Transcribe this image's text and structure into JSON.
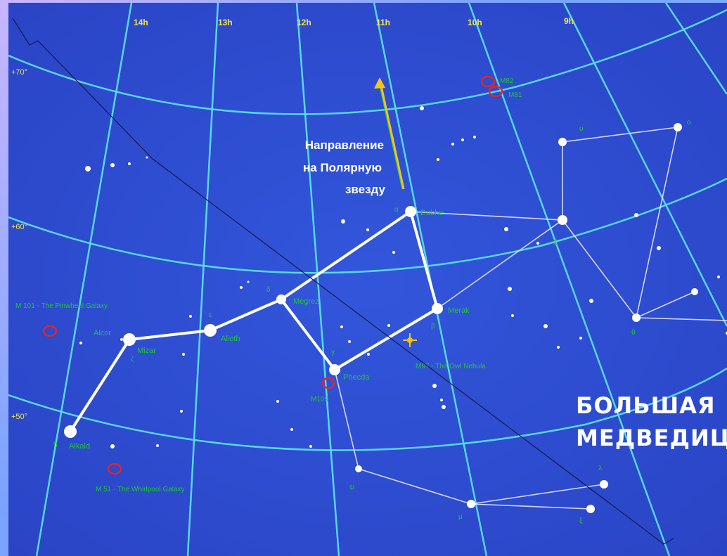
{
  "ra_labels": [
    "14h",
    "13h",
    "12h",
    "11h",
    "10h",
    "9h"
  ],
  "dec_labels": [
    "+70°",
    "+60°",
    "+50°"
  ],
  "direction_text": [
    "Направление",
    "на Полярную",
    "звезду"
  ],
  "title": [
    "БОЛЬШАЯ",
    "МЕДВЕДИЦА"
  ],
  "stars": {
    "dubhe": {
      "greek": "α",
      "name": "Dubhe"
    },
    "merak": {
      "greek": "β",
      "name": "Merak"
    },
    "phecda": {
      "greek": "γ",
      "name": "Phecda"
    },
    "megrez": {
      "greek": "δ",
      "name": "Megrez"
    },
    "alioth": {
      "greek": "ε",
      "name": "Alioth"
    },
    "mizar": {
      "greek": "ζ",
      "name": "Mizar"
    },
    "alcor": {
      "name": "Alcor"
    },
    "alkaid": {
      "greek": "η",
      "name": "Alkaid"
    },
    "psi": {
      "greek": "ψ"
    },
    "mu": {
      "greek": "μ"
    },
    "lambda": {
      "greek": "λ"
    },
    "chi": {
      "greek": "χ"
    },
    "upsilon": {
      "greek": "υ"
    },
    "theta": {
      "greek": "θ"
    },
    "omicron": {
      "greek": "ο"
    },
    "xi": {
      "greek": "ξ"
    }
  },
  "objects": {
    "m101": "M 101 - The Pinwheel Galaxy",
    "m51": "M 51 - The Whirlpool Galaxy",
    "m97": "M97 - The Owl Nebula",
    "m109": "M109",
    "m82": "M82",
    "m81": "M81"
  },
  "colors": {
    "sky": "#2f4fd6",
    "grid": "#57e0e8",
    "stick": "#ffffff",
    "label": "#1fc43a",
    "galaxy": "#e0262a",
    "arrow": "#f5c518"
  }
}
